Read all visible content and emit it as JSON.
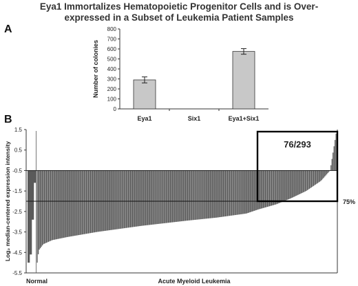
{
  "figure": {
    "title_line1": "Eya1 Immortalizes Hematopoietic Progenitor Cells and is Over-",
    "title_line2": "expressed in a Subset of Leukemia Patient Samples",
    "panel_a_letter": "A",
    "panel_b_letter": "B"
  },
  "chart_data": [
    {
      "type": "bar",
      "panel": "A",
      "categories": [
        "Eya1",
        "Six1",
        "Eya1+Six1"
      ],
      "values": [
        290,
        0,
        575
      ],
      "errors": [
        30,
        0,
        28
      ],
      "ylabel": "Number of colonies",
      "ylim": [
        0,
        800
      ],
      "yticks": [
        "0",
        "100",
        "200",
        "300",
        "400",
        "500",
        "600",
        "700",
        "800"
      ],
      "grid": false,
      "colors": {
        "bar": "#c8c8c8",
        "edge": "#333333"
      }
    },
    {
      "type": "bar",
      "panel": "B",
      "ylabel": "Log₂ median-centered expression intensity",
      "ylim": [
        -5.5,
        1.5
      ],
      "yticks": [
        "1.5",
        "0.5",
        "-0.5",
        "-1.5",
        "-2.5",
        "-3.5",
        "-4.5",
        "-5.5"
      ],
      "baseline": -0.5,
      "threshold_value": -2.0,
      "threshold_label": "75%",
      "highlight_label": "76/293",
      "group_labels": {
        "normal": "Normal",
        "aml": "Acute Myeloid Leukemia"
      },
      "normal_count": 4,
      "aml_count": 293,
      "normal_values": [
        -5.0,
        -4.6,
        -2.9,
        -1.1
      ],
      "aml_curve_points": [
        [
          0,
          -5.0
        ],
        [
          0.005,
          -4.4
        ],
        [
          0.02,
          -4.1
        ],
        [
          0.05,
          -3.9
        ],
        [
          0.1,
          -3.75
        ],
        [
          0.2,
          -3.5
        ],
        [
          0.35,
          -3.2
        ],
        [
          0.5,
          -2.95
        ],
        [
          0.6,
          -2.8
        ],
        [
          0.7,
          -2.6
        ],
        [
          0.74,
          -2.4
        ],
        [
          0.8,
          -2.15
        ],
        [
          0.85,
          -1.85
        ],
        [
          0.9,
          -1.5
        ],
        [
          0.95,
          -1.0
        ],
        [
          0.98,
          -0.5
        ],
        [
          1.0,
          1.3
        ]
      ],
      "colors": {
        "bar": "#5a5a5a",
        "box": "#000000"
      }
    }
  ]
}
